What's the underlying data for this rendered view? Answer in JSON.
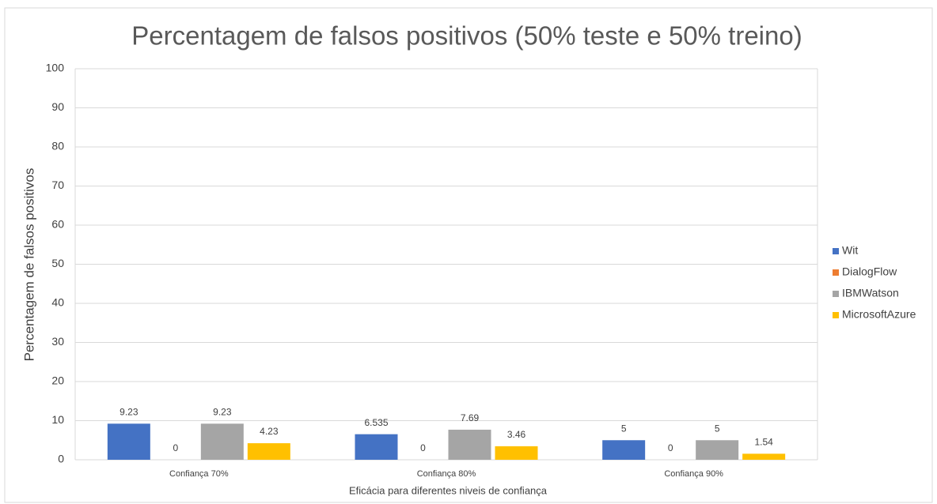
{
  "chart_data": {
    "type": "bar",
    "title": "Percentagem de falsos positivos (50% teste e 50% treino)",
    "x_label": "Eficácia para diferentes niveis de confiança",
    "y_label": "Percentagem de falsos positivos",
    "categories": [
      "Confiança 70%",
      "Confiança 80%",
      "Confiança 90%"
    ],
    "series": [
      {
        "name": "Wit",
        "color": "#4472c4",
        "values": [
          9.23,
          6.535,
          5
        ]
      },
      {
        "name": "DialogFlow",
        "color": "#ed7d31",
        "values": [
          0,
          0,
          0
        ]
      },
      {
        "name": "IBMWatson",
        "color": "#a5a5a5",
        "values": [
          9.23,
          7.69,
          5
        ]
      },
      {
        "name": "MicrosoftAzure",
        "color": "#ffc000",
        "values": [
          4.23,
          3.46,
          1.54
        ]
      }
    ],
    "ylim": [
      0,
      100
    ],
    "yticks": [
      0,
      10,
      20,
      30,
      40,
      50,
      60,
      70,
      80,
      90,
      100
    ],
    "grid": true,
    "legend": "right"
  }
}
